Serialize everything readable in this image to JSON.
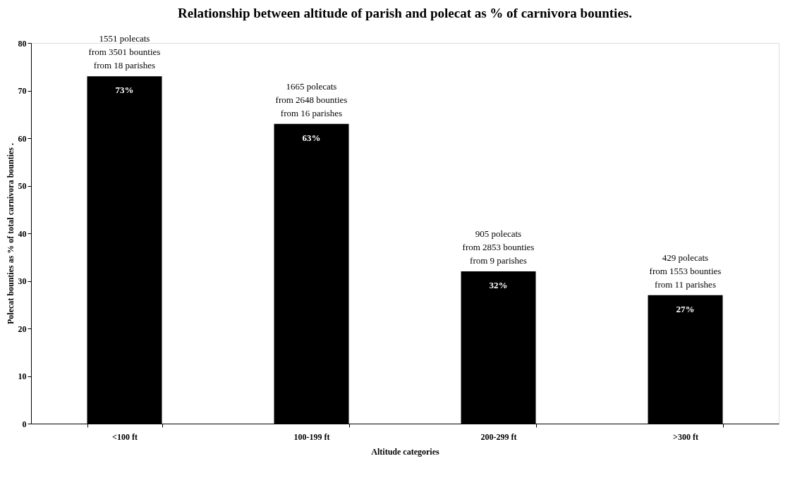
{
  "chart_data": {
    "type": "bar",
    "title": "Relationship between altitude of parish and polecat as % of carnivora bounties.",
    "xlabel": "Altitude categories",
    "ylabel": "Polecat bounties as % of total carnivora bounties   .",
    "categories": [
      "<100 ft",
      "100-199 ft",
      "200-299 ft",
      ">300 ft"
    ],
    "values": [
      73,
      63,
      32,
      27
    ],
    "color": "#000000",
    "value_labels": [
      "73%",
      "63%",
      "32%",
      "27%"
    ],
    "ylim": [
      0,
      80
    ],
    "yticks": [
      0,
      10,
      20,
      30,
      40,
      50,
      60,
      70,
      80
    ],
    "grid": false,
    "annotations": [
      {
        "text": "1551 polecats\nfrom 3501 bounties\nfrom 18 parishes",
        "x": "<100 ft",
        "y": 73
      },
      {
        "text": "1665 polecats\nfrom 2648 bounties\nfrom 16 parishes",
        "x": "100-199 ft",
        "y": 63
      },
      {
        "text": "905 polecats\nfrom 2853 bounties\nfrom 9 parishes",
        "x": "200-299 ft",
        "y": 32
      },
      {
        "text": "429 polecats\nfrom 1553 bounties\nfrom 11 parishes",
        "x": ">300 ft",
        "y": 27
      }
    ]
  }
}
